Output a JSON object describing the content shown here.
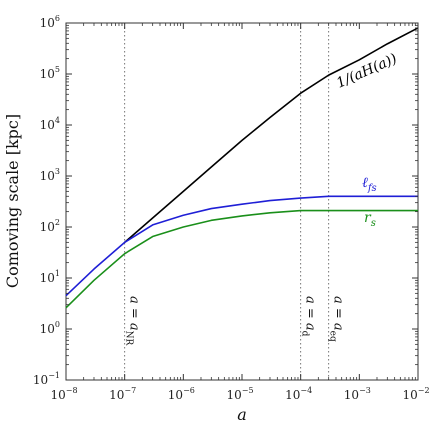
{
  "chart_data": {
    "type": "line",
    "xlabel": "a",
    "ylabel": "Comoving scale [kpc]",
    "xscale": "log",
    "yscale": "log",
    "xlim": [
      1e-08,
      0.01
    ],
    "ylim": [
      0.1,
      1000000
    ],
    "x_ticks": [
      {
        "base": "10",
        "exp": "−8",
        "value": 1e-08
      },
      {
        "base": "10",
        "exp": "−7",
        "value": 1e-07
      },
      {
        "base": "10",
        "exp": "−6",
        "value": 1e-06
      },
      {
        "base": "10",
        "exp": "−5",
        "value": 1e-05
      },
      {
        "base": "10",
        "exp": "−4",
        "value": 0.0001
      },
      {
        "base": "10",
        "exp": "−3",
        "value": 0.001
      },
      {
        "base": "10",
        "exp": "−2",
        "value": 0.01
      }
    ],
    "y_ticks": [
      {
        "base": "10",
        "exp": "−1",
        "value": 0.1
      },
      {
        "base": "10",
        "exp": "0",
        "value": 1
      },
      {
        "base": "10",
        "exp": "1",
        "value": 10
      },
      {
        "base": "10",
        "exp": "2",
        "value": 100
      },
      {
        "base": "10",
        "exp": "3",
        "value": 1000
      },
      {
        "base": "10",
        "exp": "4",
        "value": 10000
      },
      {
        "base": "10",
        "exp": "5",
        "value": 100000
      },
      {
        "base": "10",
        "exp": "6",
        "value": 1000000
      }
    ],
    "series": [
      {
        "name": "1/(aH(a))",
        "color": "#000000",
        "x": [
          1e-07,
          3e-07,
          1e-06,
          3e-06,
          1e-05,
          3e-05,
          0.0001,
          0.0003,
          0.001,
          0.003,
          0.01
        ],
        "y": [
          50,
          150,
          500,
          1500,
          5000,
          14000,
          42000,
          95000,
          190000,
          390000,
          800000
        ]
      },
      {
        "name": "ℓ_fs",
        "color": "#1f1fd6",
        "x": [
          1e-08,
          3e-08,
          1e-07,
          3e-07,
          1e-06,
          3e-06,
          1e-05,
          3e-05,
          0.0001,
          0.0003,
          0.001,
          0.01
        ],
        "y": [
          4.5,
          15,
          50,
          110,
          170,
          230,
          280,
          330,
          370,
          400,
          400,
          400
        ]
      },
      {
        "name": "r_s",
        "color": "#1a8f1a",
        "x": [
          1e-08,
          3e-08,
          1e-07,
          3e-07,
          1e-06,
          3e-06,
          1e-05,
          3e-05,
          0.0001,
          0.0003,
          0.001,
          0.01
        ],
        "y": [
          2.6,
          9,
          30,
          65,
          100,
          135,
          165,
          190,
          210,
          210,
          210,
          210
        ]
      }
    ],
    "vlines": [
      {
        "x": 1e-07,
        "label": "a = a_NR",
        "label_text": "a = a",
        "label_sub": "NR"
      },
      {
        "x": 0.0001,
        "label": "a = a_d",
        "label_text": "a = a",
        "label_sub": "d"
      },
      {
        "x": 0.0003,
        "label": "a = a_eq",
        "label_text": "a = a",
        "label_sub": "eq"
      }
    ],
    "grid": false
  }
}
